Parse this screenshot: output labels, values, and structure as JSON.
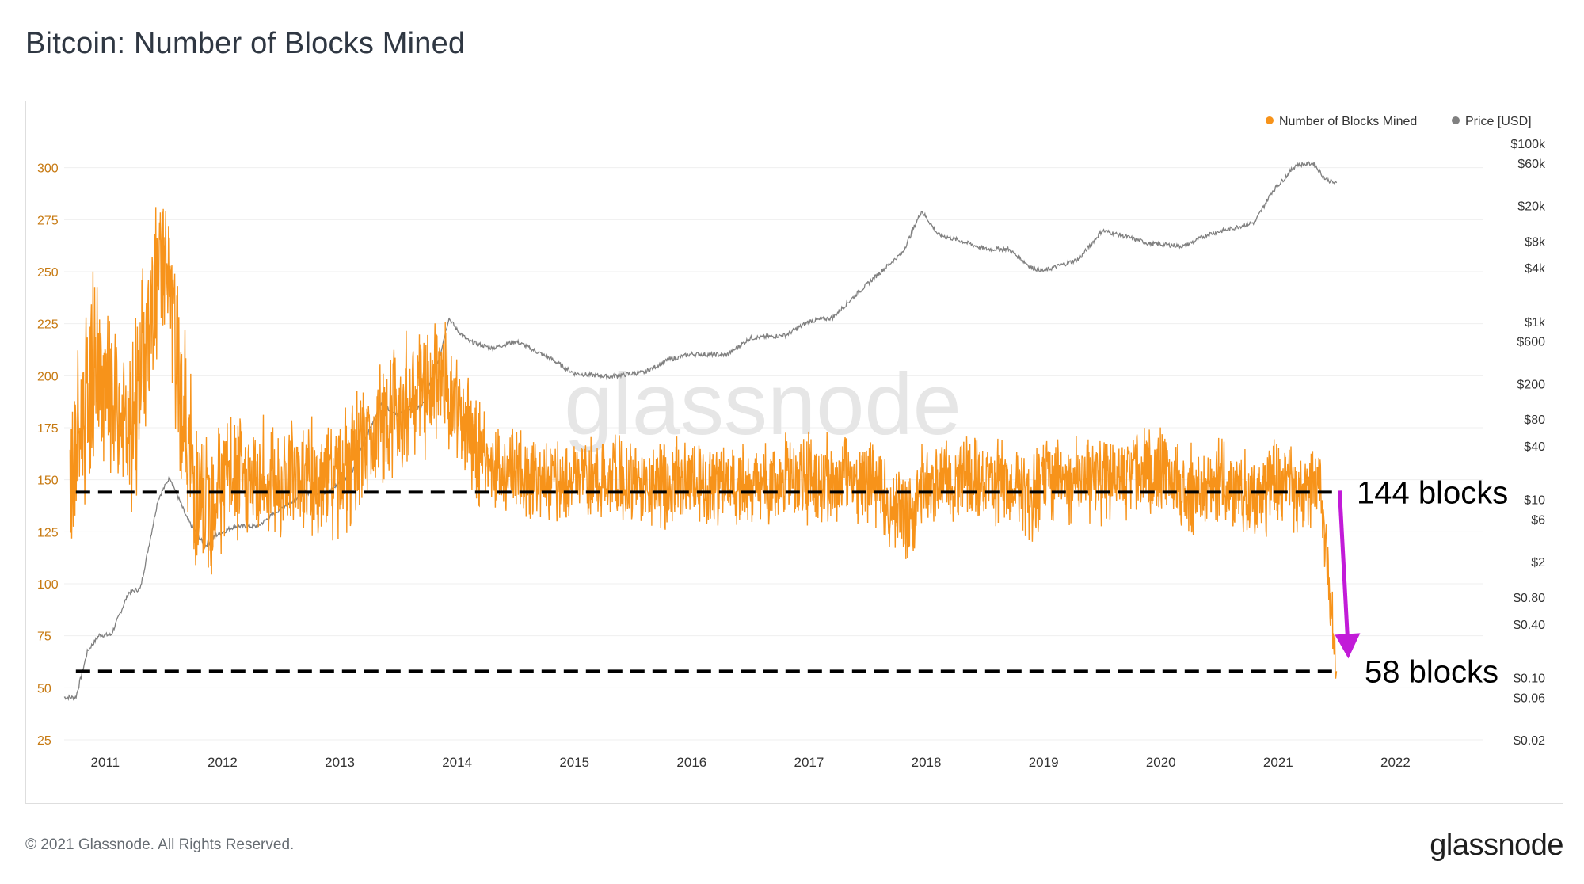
{
  "page": {
    "title": "Bitcoin: Number of Blocks Mined",
    "footer": "© 2021 Glassnode. All Rights Reserved.",
    "logo": "glassnode",
    "watermark": "glassnode"
  },
  "colors": {
    "blocks": "#f7931a",
    "price": "#808080",
    "arrow": "#c21bd8",
    "dashed": "#000000"
  },
  "chart_data": {
    "type": "line",
    "title": "Bitcoin: Number of Blocks Mined",
    "x_ticks": [
      "2011",
      "2012",
      "2013",
      "2014",
      "2015",
      "2016",
      "2017",
      "2018",
      "2019",
      "2020",
      "2021",
      "2022"
    ],
    "x_range": [
      2010.65,
      2022.75
    ],
    "y_left": {
      "ticks": [
        25,
        50,
        75,
        100,
        125,
        150,
        175,
        200,
        225,
        250,
        275,
        300
      ],
      "range": [
        25,
        325
      ]
    },
    "y_right": {
      "scale": "log",
      "ticks": [
        "$0.02",
        "$0.06",
        "$0.10",
        "$0.40",
        "$0.80",
        "$2",
        "$6",
        "$10",
        "$40",
        "$80",
        "$200",
        "$600",
        "$1k",
        "$4k",
        "$8k",
        "$20k",
        "$60k",
        "$100k"
      ],
      "tick_values": [
        0.02,
        0.06,
        0.1,
        0.4,
        0.8,
        2,
        6,
        10,
        40,
        80,
        200,
        600,
        1000,
        4000,
        8000,
        20000,
        60000,
        100000
      ]
    },
    "legend_position": "top-right",
    "series": [
      {
        "name": "Number of Blocks Mined",
        "axis": "left",
        "style": "daily bars",
        "x": [
          2010.7,
          2010.9,
          2011.0,
          2011.2,
          2011.4,
          2011.5,
          2011.7,
          2011.8,
          2012.0,
          2012.3,
          2012.6,
          2012.9,
          2013.1,
          2013.3,
          2013.6,
          2013.8,
          2013.9,
          2014.0,
          2014.3,
          2014.6,
          2015.0,
          2015.5,
          2016.0,
          2016.5,
          2017.0,
          2017.5,
          2017.7,
          2017.85,
          2018.0,
          2018.5,
          2018.9,
          2019.0,
          2019.5,
          2020.0,
          2020.2,
          2020.5,
          2020.8,
          2021.0,
          2021.25,
          2021.35,
          2021.45,
          2021.5
        ],
        "y": [
          150,
          205,
          190,
          170,
          230,
          260,
          170,
          130,
          150,
          148,
          150,
          150,
          155,
          175,
          190,
          195,
          200,
          180,
          155,
          152,
          150,
          150,
          148,
          148,
          150,
          150,
          140,
          130,
          150,
          150,
          140,
          150,
          150,
          155,
          145,
          148,
          140,
          150,
          145,
          150,
          90,
          58
        ]
      },
      {
        "name": "Price [USD]",
        "axis": "right",
        "style": "line",
        "x": [
          2010.65,
          2010.75,
          2010.85,
          2010.95,
          2011.05,
          2011.2,
          2011.3,
          2011.45,
          2011.55,
          2011.7,
          2011.85,
          2011.95,
          2012.1,
          2012.3,
          2012.5,
          2012.7,
          2012.9,
          2013.1,
          2013.25,
          2013.35,
          2013.5,
          2013.7,
          2013.85,
          2013.93,
          2014.0,
          2014.1,
          2014.3,
          2014.5,
          2014.8,
          2015.0,
          2015.3,
          2015.6,
          2015.8,
          2016.0,
          2016.3,
          2016.5,
          2016.8,
          2017.0,
          2017.2,
          2017.4,
          2017.6,
          2017.8,
          2017.96,
          2018.1,
          2018.3,
          2018.5,
          2018.7,
          2018.9,
          2019.0,
          2019.3,
          2019.5,
          2019.7,
          2019.9,
          2020.2,
          2020.4,
          2020.6,
          2020.8,
          2020.95,
          2021.05,
          2021.15,
          2021.3,
          2021.4,
          2021.5
        ],
        "y": [
          0.06,
          0.06,
          0.2,
          0.3,
          0.3,
          0.9,
          1,
          10,
          18,
          6,
          3,
          4,
          5,
          5,
          8,
          12,
          12,
          20,
          60,
          120,
          90,
          110,
          400,
          1100,
          800,
          600,
          500,
          600,
          380,
          260,
          240,
          270,
          370,
          430,
          420,
          650,
          700,
          1000,
          1100,
          2000,
          3500,
          6000,
          17500,
          9500,
          8000,
          6500,
          6500,
          4000,
          3700,
          5000,
          10500,
          9000,
          7500,
          7000,
          9500,
          11000,
          13000,
          29000,
          40000,
          57000,
          60000,
          40000,
          35000
        ]
      }
    ],
    "annotations": [
      {
        "text": "144 blocks",
        "y": 144,
        "axis": "left"
      },
      {
        "text": "58 blocks",
        "y": 58,
        "axis": "left"
      }
    ]
  }
}
